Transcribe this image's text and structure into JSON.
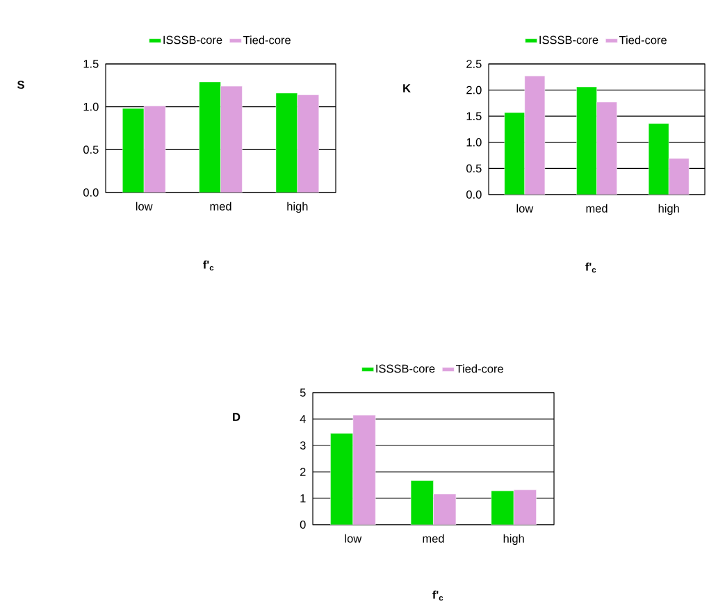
{
  "chart_data": [
    {
      "type": "bar",
      "categories": [
        "low",
        "med",
        "high"
      ],
      "xlabel": "f'$_{c}$",
      "ylabel": "S",
      "ylim": [
        0,
        1.5
      ],
      "yticks": [
        {
          "value": 0,
          "label": "0.0"
        },
        0.5,
        {
          "value": 1,
          "label": "1.0"
        },
        1.5
      ],
      "grid": "y",
      "legend": "top",
      "series": [
        {
          "name": "ISSSB-core",
          "color": "#00dd00",
          "values": [
            0.98,
            1.29,
            1.16
          ]
        },
        {
          "name": "Tied-core",
          "color": "#dda0dd",
          "values": [
            1.01,
            1.24,
            1.14
          ]
        }
      ]
    },
    {
      "type": "bar",
      "categories": [
        "low",
        "med",
        "high"
      ],
      "xlabel": "f'$_{c}$",
      "ylabel": "K",
      "ylim": [
        0,
        2.5
      ],
      "yticks": [
        {
          "value": 0,
          "label": "0.0"
        },
        0.5,
        {
          "value": 1,
          "label": "1.0"
        },
        1.5,
        {
          "value": 2,
          "label": "2.0"
        },
        2.5
      ],
      "grid": "y",
      "legend": "top",
      "series": [
        {
          "name": "ISSSB-core",
          "color": "#00dd00",
          "values": [
            1.57,
            2.06,
            1.36
          ]
        },
        {
          "name": "Tied-core",
          "color": "#dda0dd",
          "values": [
            2.27,
            1.77,
            0.69
          ]
        }
      ]
    },
    {
      "type": "bar",
      "categories": [
        "low",
        "med",
        "high"
      ],
      "xlabel": "f'$_{c}$",
      "ylabel": "D",
      "ylim": [
        0,
        5
      ],
      "yticks": [
        0,
        1,
        2,
        3,
        4,
        5
      ],
      "grid": "y",
      "legend": "top",
      "series": [
        {
          "name": "ISSSB-core",
          "color": "#00dd00",
          "values": [
            3.46,
            1.67,
            1.28
          ]
        },
        {
          "name": "Tied-core",
          "color": "#dda0dd",
          "values": [
            4.15,
            1.16,
            1.32
          ]
        }
      ]
    }
  ]
}
